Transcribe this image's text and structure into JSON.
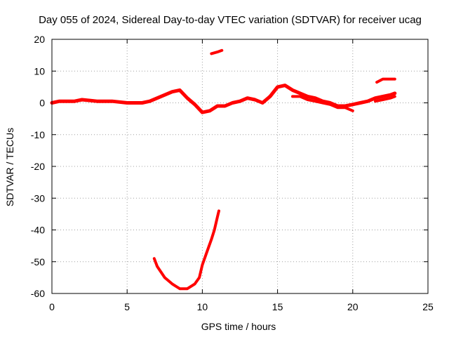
{
  "chart_data": {
    "type": "line",
    "title": "Day 055 of 2024, Sidereal Day-to-day VTEC variation (SDTVAR) for receiver ucag",
    "xlabel": "GPS time / hours",
    "ylabel": "SDTVAR / TECUs",
    "xlim": [
      0,
      25
    ],
    "ylim": [
      -60,
      20
    ],
    "xticks": [
      0,
      5,
      10,
      15,
      20,
      25
    ],
    "yticks": [
      -60,
      -50,
      -40,
      -30,
      -20,
      -10,
      0,
      10,
      20
    ],
    "grid": true,
    "color": "#ff0000",
    "series": [
      {
        "name": "main-track",
        "x": [
          0.0,
          0.5,
          1.0,
          1.5,
          2.0,
          3.0,
          4.0,
          5.0,
          6.0,
          6.5,
          7.0,
          7.5,
          8.0,
          8.5,
          9.0,
          9.5,
          10.0,
          10.5,
          11.0,
          11.5,
          12.0,
          12.5,
          13.0,
          13.5,
          14.0,
          14.5,
          15.0,
          15.5,
          16.0,
          16.5,
          17.0,
          17.5,
          18.0,
          18.5,
          19.0,
          19.5,
          20.0,
          20.5,
          21.0,
          21.5,
          22.0,
          22.5,
          22.8
        ],
        "y": [
          0,
          0.5,
          0.5,
          0.5,
          1,
          0.5,
          0.5,
          0,
          0,
          0.5,
          1.5,
          2.5,
          3.5,
          4,
          1.5,
          -0.5,
          -3,
          -2.5,
          -1,
          -1,
          0,
          0.5,
          1.5,
          1,
          0,
          2,
          5,
          5.5,
          4,
          3,
          2,
          1.5,
          0.5,
          0,
          -1,
          -1,
          -0.5,
          0,
          0.5,
          1.5,
          2,
          2.5,
          3
        ]
      },
      {
        "name": "lower-band",
        "x": [
          16.0,
          16.5,
          17.0,
          17.5,
          18.0,
          18.5,
          19.0,
          19.5,
          20.0
        ],
        "y": [
          2,
          2,
          1,
          0.5,
          0,
          -0.5,
          -1.5,
          -1.5,
          -2.5
        ]
      },
      {
        "name": "secondary-band",
        "x": [
          21.5,
          22.0,
          22.5,
          22.8
        ],
        "y": [
          0.5,
          1,
          1.5,
          2
        ]
      },
      {
        "name": "segment-near-16",
        "x": [
          10.6,
          11.0,
          11.3
        ],
        "y": [
          15.5,
          16,
          16.5
        ]
      },
      {
        "name": "segment-near-8",
        "x": [
          21.6,
          22.0,
          22.4,
          22.8
        ],
        "y": [
          6.5,
          7.5,
          7.5,
          7.5
        ]
      },
      {
        "name": "dip-arc",
        "x": [
          6.8,
          7.0,
          7.5,
          8.0,
          8.5,
          9.0,
          9.5,
          9.8,
          10.0,
          10.3,
          10.6,
          10.8,
          11.0,
          11.1
        ],
        "y": [
          -49,
          -51.5,
          -55,
          -57,
          -58.5,
          -58.5,
          -57,
          -55,
          -51,
          -47,
          -43,
          -40,
          -36,
          -34
        ]
      }
    ]
  }
}
